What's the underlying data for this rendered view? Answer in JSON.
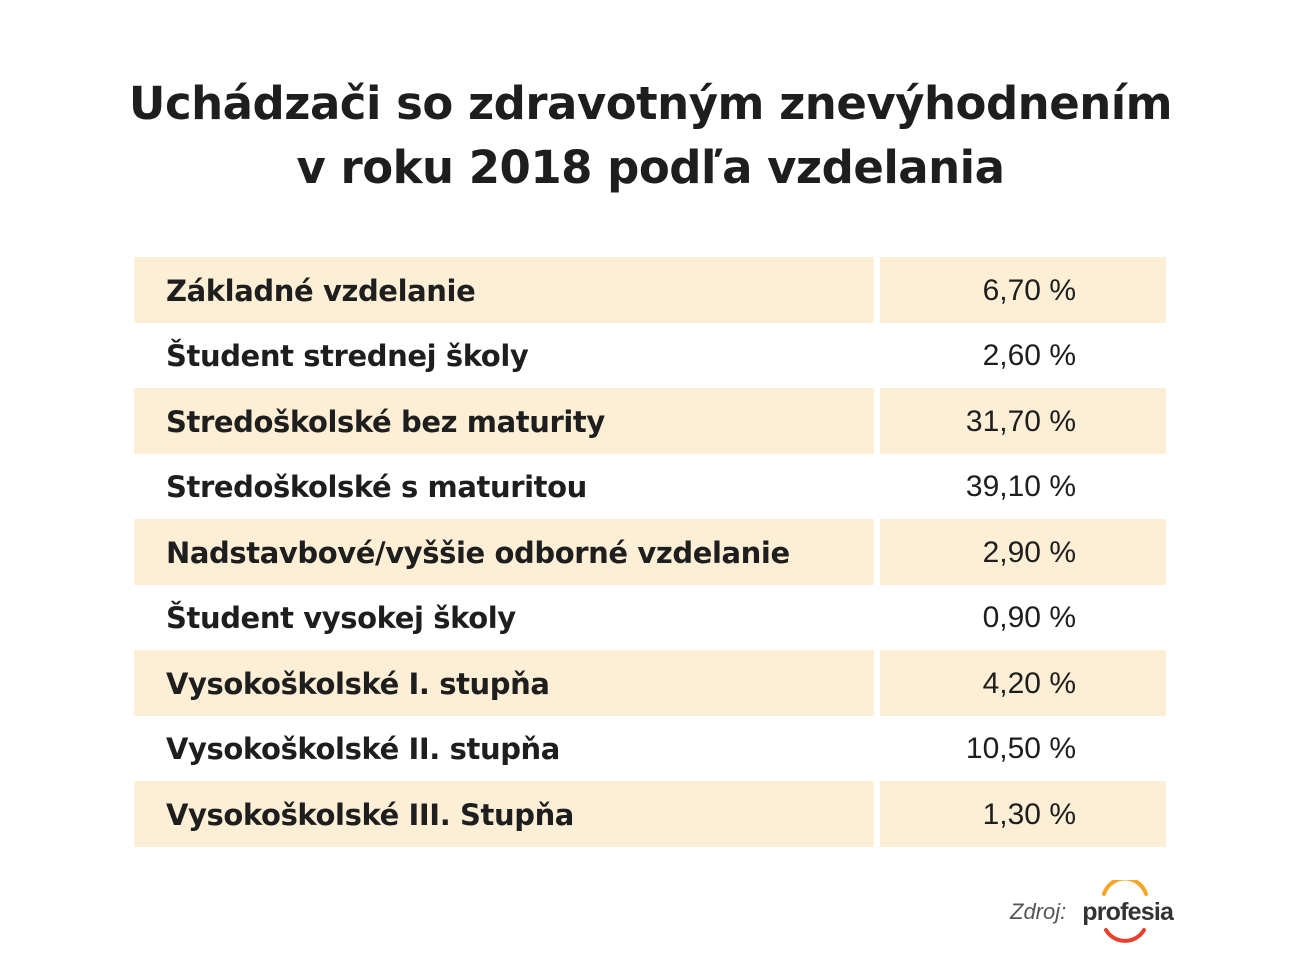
{
  "title": {
    "line1": "Uchádzači so zdravotným znevýhodnením",
    "line2": "v roku 2018 podľa vzdelania"
  },
  "chart_data": {
    "type": "table",
    "title": "Uchádzači so zdravotným znevýhodnením v roku 2018 podľa vzdelania",
    "rows": [
      {
        "label": "Základné vzdelanie",
        "value": 6.7,
        "display": "6,70 %"
      },
      {
        "label": "Študent strednej školy",
        "value": 2.6,
        "display": "2,60 %"
      },
      {
        "label": "Stredoškolské bez maturity",
        "value": 31.7,
        "display": "31,70 %"
      },
      {
        "label": "Stredoškolské s maturitou",
        "value": 39.1,
        "display": "39,10 %"
      },
      {
        "label": "Nadstavbové/vyššie odborné vzdelanie",
        "value": 2.9,
        "display": "2,90 %"
      },
      {
        "label": "Študent vysokej školy",
        "value": 0.9,
        "display": "0,90 %"
      },
      {
        "label": "Vysokoškolské I. stupňa",
        "value": 4.2,
        "display": "4,20 %"
      },
      {
        "label": "Vysokoškolské II. stupňa",
        "value": 10.5,
        "display": "10,50 %"
      },
      {
        "label": "Vysokoškolské III. Stupňa",
        "value": 1.3,
        "display": "1,30 %"
      }
    ],
    "shaded_row_color": "#fcefd6"
  },
  "source": {
    "label": "Zdroj:",
    "logo_text": "profesia",
    "logo_colors": [
      "#f5a623",
      "#e8402a"
    ]
  }
}
